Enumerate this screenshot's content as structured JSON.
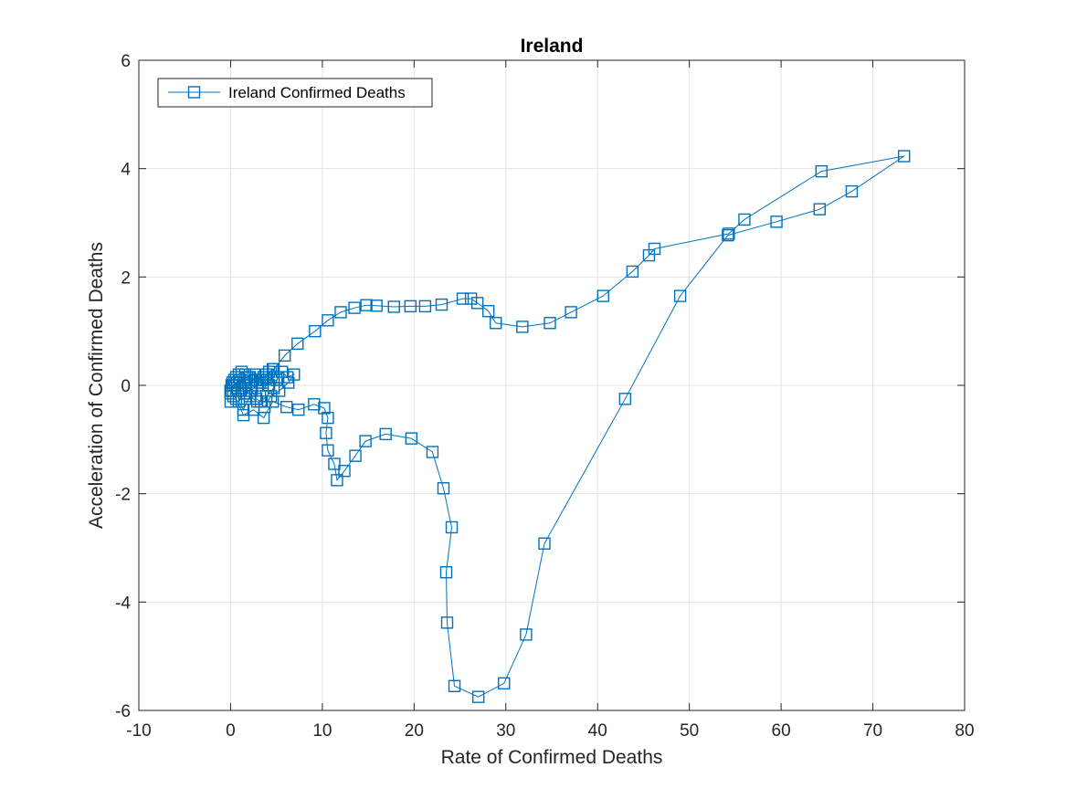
{
  "chart_data": {
    "type": "line",
    "title": "Ireland",
    "xlabel": "Rate of Confirmed Deaths",
    "ylabel": "Acceleration of Confirmed Deaths",
    "xlim": [
      -10,
      80
    ],
    "ylim": [
      -6,
      6
    ],
    "xticks": [
      -10,
      0,
      10,
      20,
      30,
      40,
      50,
      60,
      70,
      80
    ],
    "yticks": [
      -6,
      -4,
      -2,
      0,
      2,
      4,
      6
    ],
    "x_tick_labels": [
      "-10",
      "0",
      "10",
      "20",
      "30",
      "40",
      "50",
      "60",
      "70",
      "80"
    ],
    "y_tick_labels": [
      "-6",
      "-4",
      "-2",
      "0",
      "2",
      "4",
      "6"
    ],
    "grid": true,
    "legend_location": "top-left",
    "marker": "square",
    "series": [
      {
        "name": "Ireland Confirmed Deaths",
        "color": "#0072BD",
        "x": [
          0.0,
          0.0,
          0.1,
          0.2,
          0.4,
          0.6,
          0.9,
          1.2,
          1.6,
          2.1,
          2.8,
          3.6,
          4.7,
          5.9,
          7.3,
          9.2,
          10.6,
          12.0,
          13.5,
          14.8,
          15.9,
          17.8,
          19.6,
          21.2,
          23.0,
          25.3,
          26.2,
          26.9,
          28.1,
          28.9,
          31.8,
          34.8,
          37.1,
          40.6,
          43.8,
          45.6,
          46.2,
          54.3,
          56.0,
          64.4,
          73.4,
          67.7,
          64.2,
          59.5,
          54.2,
          49.0,
          43.0,
          34.2,
          32.2,
          29.8,
          27.0,
          24.4,
          23.6,
          23.5,
          24.1,
          23.2,
          22.0,
          19.7,
          16.9,
          14.7,
          13.6,
          12.4,
          11.6,
          11.3,
          10.6,
          10.4,
          10.6,
          10.2,
          9.1,
          7.4,
          6.1,
          4.6,
          3.6,
          2.5,
          1.4,
          0.6,
          0.1,
          1.0,
          1.8,
          2.6,
          3.4,
          4.2,
          5.0,
          5.6,
          6.2,
          6.9,
          6.3,
          5.3,
          4.4,
          3.7,
          2.9,
          2.1,
          1.4,
          0.9,
          1.5,
          2.3,
          3.2,
          3.9,
          4.6,
          5.2,
          4.7,
          3.9,
          3.3,
          2.8,
          2.3,
          1.6,
          1.0,
          0.5,
          0.0,
          0.3,
          0.8,
          1.4,
          2.0,
          2.7,
          3.5,
          4.1,
          4.7,
          4.2,
          3.5,
          2.9,
          2.2,
          1.7,
          1.2,
          0.7,
          0.3,
          0.0
        ],
        "y": [
          -0.3,
          -0.15,
          0.0,
          0.05,
          0.1,
          0.15,
          0.2,
          0.25,
          0.2,
          0.15,
          0.1,
          0.15,
          0.3,
          0.55,
          0.77,
          1.0,
          1.2,
          1.35,
          1.43,
          1.48,
          1.47,
          1.45,
          1.46,
          1.46,
          1.49,
          1.6,
          1.6,
          1.52,
          1.37,
          1.15,
          1.08,
          1.15,
          1.35,
          1.65,
          2.1,
          2.4,
          2.52,
          2.8,
          3.06,
          3.95,
          4.23,
          3.58,
          3.25,
          3.02,
          2.77,
          1.65,
          -0.25,
          -2.92,
          -4.6,
          -5.5,
          -5.75,
          -5.55,
          -4.38,
          -3.45,
          -2.62,
          -1.9,
          -1.23,
          -0.98,
          -0.9,
          -1.03,
          -1.3,
          -1.58,
          -1.75,
          -1.45,
          -1.2,
          -0.88,
          -0.6,
          -0.42,
          -0.35,
          -0.45,
          -0.4,
          -0.3,
          -0.6,
          -0.45,
          -0.55,
          -0.25,
          -0.1,
          0.05,
          0.15,
          0.2,
          0.1,
          0.0,
          0.1,
          0.25,
          0.15,
          0.2,
          0.05,
          -0.1,
          -0.2,
          -0.4,
          -0.3,
          -0.2,
          -0.45,
          -0.3,
          -0.15,
          -0.05,
          0.05,
          0.2,
          0.3,
          0.15,
          -0.05,
          -0.2,
          -0.3,
          -0.25,
          -0.1,
          0.0,
          0.1,
          0.0,
          -0.1,
          -0.2,
          -0.1,
          0.05,
          0.15,
          0.1,
          0.05,
          0.0,
          0.15,
          0.25,
          0.1,
          0.0,
          -0.1,
          -0.15,
          -0.05,
          0.05,
          0.0,
          -0.1
        ]
      }
    ]
  }
}
